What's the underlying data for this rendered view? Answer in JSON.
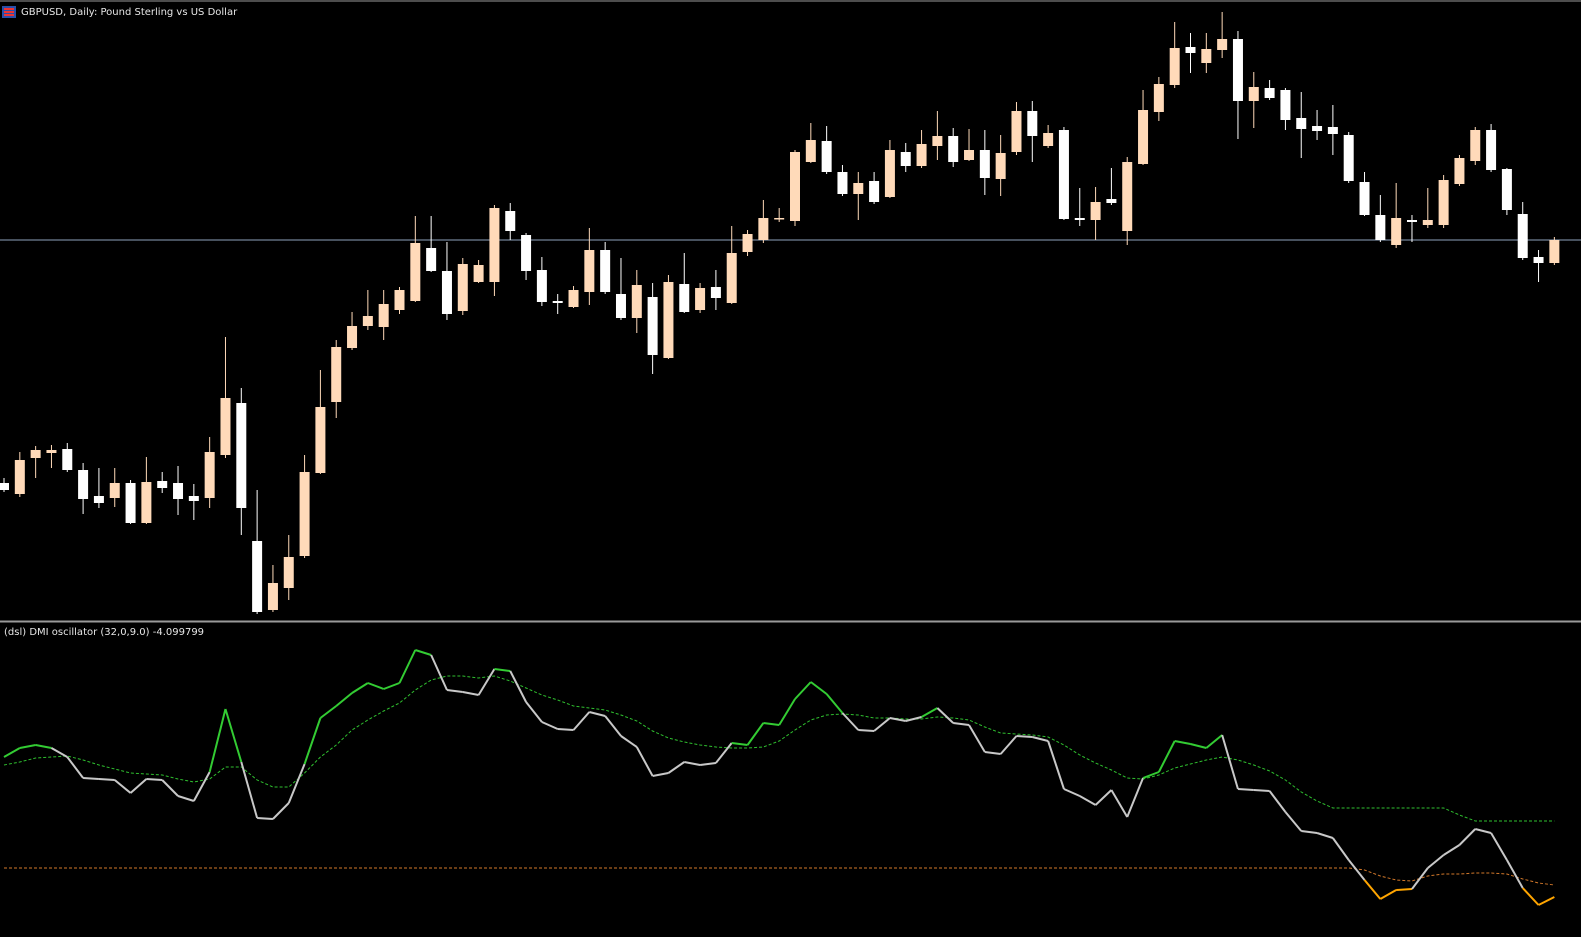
{
  "chart_data": [
    {
      "type": "candlestick",
      "title": "GBPUSD, Daily:  Pound Sterling vs US Dollar",
      "open": [
        137,
        126,
        162,
        167,
        171,
        150,
        124,
        122,
        137,
        97,
        139,
        137,
        124,
        122,
        165,
        217,
        79,
        10,
        32,
        64,
        147,
        218,
        272,
        294,
        293,
        310,
        319,
        372,
        349,
        309,
        338,
        338,
        409,
        385,
        350,
        319,
        313,
        328,
        370,
        326,
        302,
        323,
        262,
        336,
        310,
        333,
        317,
        368,
        380,
        401,
        399,
        458,
        479,
        448,
        426,
        439,
        423,
        468,
        454,
        474,
        484,
        460,
        470,
        441,
        468,
        509,
        474,
        490,
        402,
        400,
        421,
        389,
        456,
        508,
        535,
        573,
        557,
        570,
        581,
        519,
        532,
        530,
        502,
        494,
        493,
        485,
        438,
        405,
        375,
        400,
        395,
        395,
        436,
        459,
        490,
        451,
        406,
        363,
        357
      ],
      "high": [
        142,
        168,
        174,
        175,
        177,
        157,
        152,
        152,
        140,
        163,
        148,
        154,
        136,
        183,
        283,
        232,
        130,
        55,
        85,
        165,
        250,
        280,
        308,
        330,
        330,
        333,
        404,
        404,
        378,
        362,
        360,
        415,
        417,
        387,
        363,
        326,
        334,
        392,
        378,
        362,
        350,
        337,
        345,
        367,
        337,
        350,
        394,
        390,
        420,
        412,
        470,
        497,
        494,
        455,
        448,
        448,
        480,
        477,
        490,
        509,
        492,
        491,
        490,
        485,
        518,
        519,
        495,
        493,
        432,
        433,
        452,
        463,
        530,
        543,
        598,
        587,
        587,
        608,
        589,
        548,
        540,
        532,
        528,
        510,
        515,
        488,
        448,
        425,
        437,
        405,
        432,
        445,
        465,
        493,
        496,
        452,
        418,
        370,
        383
      ],
      "low": [
        128,
        123,
        142,
        152,
        148,
        106,
        112,
        113,
        96,
        96,
        127,
        105,
        100,
        112,
        162,
        85,
        6,
        8,
        20,
        62,
        146,
        202,
        270,
        290,
        280,
        306,
        318,
        348,
        300,
        305,
        337,
        324,
        380,
        340,
        314,
        306,
        312,
        315,
        326,
        300,
        287,
        246,
        261,
        307,
        307,
        310,
        316,
        364,
        377,
        398,
        394,
        457,
        446,
        424,
        400,
        416,
        422,
        448,
        452,
        460,
        453,
        459,
        425,
        424,
        465,
        458,
        472,
        400,
        394,
        380,
        415,
        375,
        455,
        499,
        532,
        547,
        547,
        562,
        481,
        492,
        520,
        490,
        462,
        480,
        465,
        437,
        404,
        378,
        372,
        378,
        392,
        392,
        434,
        455,
        448,
        405,
        360,
        338,
        355
      ],
      "close": [
        130,
        160,
        170,
        170,
        150,
        121,
        117,
        137,
        97,
        138,
        132,
        121,
        119,
        168,
        222,
        112,
        8,
        37,
        63,
        148,
        213,
        273,
        294,
        304,
        316,
        330,
        377,
        349,
        306,
        356,
        355,
        412,
        389,
        349,
        318,
        317,
        330,
        370,
        328,
        302,
        335,
        265,
        338,
        308,
        332,
        322,
        367,
        386,
        402,
        402,
        468,
        480,
        448,
        426,
        437,
        418,
        470,
        454,
        476,
        484,
        458,
        470,
        442,
        467,
        509,
        484,
        487,
        401,
        400,
        418,
        417,
        458,
        510,
        536,
        572,
        567,
        571,
        581,
        519,
        533,
        522,
        500,
        491,
        489,
        486,
        439,
        405,
        380,
        402,
        398,
        400,
        440,
        462,
        490,
        450,
        410,
        362,
        357,
        380
      ],
      "up_color": "#ffdab9",
      "down_color": "#ffffff",
      "ylim": [
        0,
        620
      ],
      "hline": 380,
      "hline_color": "#8ea2bd"
    },
    {
      "type": "oscillator",
      "title": "(dsl) DMI oscillator  (32,0,9.0) -4.099799",
      "ylim": [
        -61,
        246
      ],
      "series": [
        {
          "role": "main",
          "color": "#c8c8c8",
          "up_color": "#33cc33",
          "down_color": "#ffa500",
          "values": [
            111,
            120,
            123,
            120,
            111,
            90,
            89,
            88,
            75,
            89,
            88,
            72,
            67,
            96,
            159,
            106,
            50,
            49,
            65,
            104,
            150,
            162,
            175,
            185,
            179,
            185,
            218,
            213,
            178,
            176,
            173,
            199,
            197,
            166,
            146,
            139,
            138,
            156,
            152,
            132,
            121,
            92,
            95,
            106,
            103,
            105,
            125,
            123,
            145,
            143,
            169,
            186,
            174,
            155,
            138,
            137,
            150,
            147,
            151,
            160,
            145,
            143,
            116,
            114,
            132,
            131,
            127,
            79,
            72,
            63,
            78,
            51,
            90,
            96,
            127,
            124,
            120,
            133,
            79,
            78,
            77,
            56,
            37,
            35,
            30,
            8,
            -12,
            -31,
            -22,
            -21,
            0,
            13,
            23,
            39,
            35,
            8,
            -20,
            -37,
            -29
          ]
        },
        {
          "role": "signal",
          "color": "#2fbf2f",
          "values": [
            103,
            106,
            110,
            111,
            112,
            108,
            103,
            99,
            95,
            94,
            93,
            89,
            86,
            89,
            101,
            101,
            88,
            81,
            81,
            95,
            111,
            123,
            138,
            148,
            157,
            165,
            178,
            188,
            192,
            192,
            190,
            192,
            187,
            180,
            173,
            168,
            162,
            160,
            158,
            153,
            147,
            137,
            130,
            126,
            123,
            121,
            120,
            120,
            121,
            127,
            138,
            148,
            153,
            154,
            153,
            150,
            150,
            149,
            149,
            151,
            150,
            148,
            141,
            135,
            134,
            133,
            131,
            123,
            113,
            105,
            98,
            90,
            89,
            93,
            100,
            104,
            108,
            111,
            108,
            103,
            97,
            88,
            76,
            67,
            60,
            60,
            60,
            60,
            60,
            60,
            60,
            60,
            53,
            47,
            47,
            47,
            47,
            47,
            47
          ]
        },
        {
          "role": "level",
          "color": "#d2782a",
          "values": [
            0,
            0,
            0,
            0,
            0,
            0,
            0,
            0,
            0,
            0,
            0,
            0,
            0,
            0,
            0,
            0,
            0,
            0,
            0,
            0,
            0,
            0,
            0,
            0,
            0,
            0,
            0,
            0,
            0,
            0,
            0,
            0,
            0,
            0,
            0,
            0,
            0,
            0,
            0,
            0,
            0,
            0,
            0,
            0,
            0,
            0,
            0,
            0,
            0,
            0,
            0,
            0,
            0,
            0,
            0,
            0,
            0,
            0,
            0,
            0,
            0,
            0,
            0,
            0,
            0,
            0,
            0,
            0,
            0,
            0,
            0,
            0,
            0,
            0,
            0,
            0,
            0,
            0,
            0,
            0,
            0,
            0,
            0,
            0,
            0,
            0,
            -2,
            -8,
            -12,
            -13,
            -8,
            -6,
            -6,
            -5,
            -5,
            -6,
            -11,
            -15,
            -17
          ]
        }
      ]
    }
  ]
}
